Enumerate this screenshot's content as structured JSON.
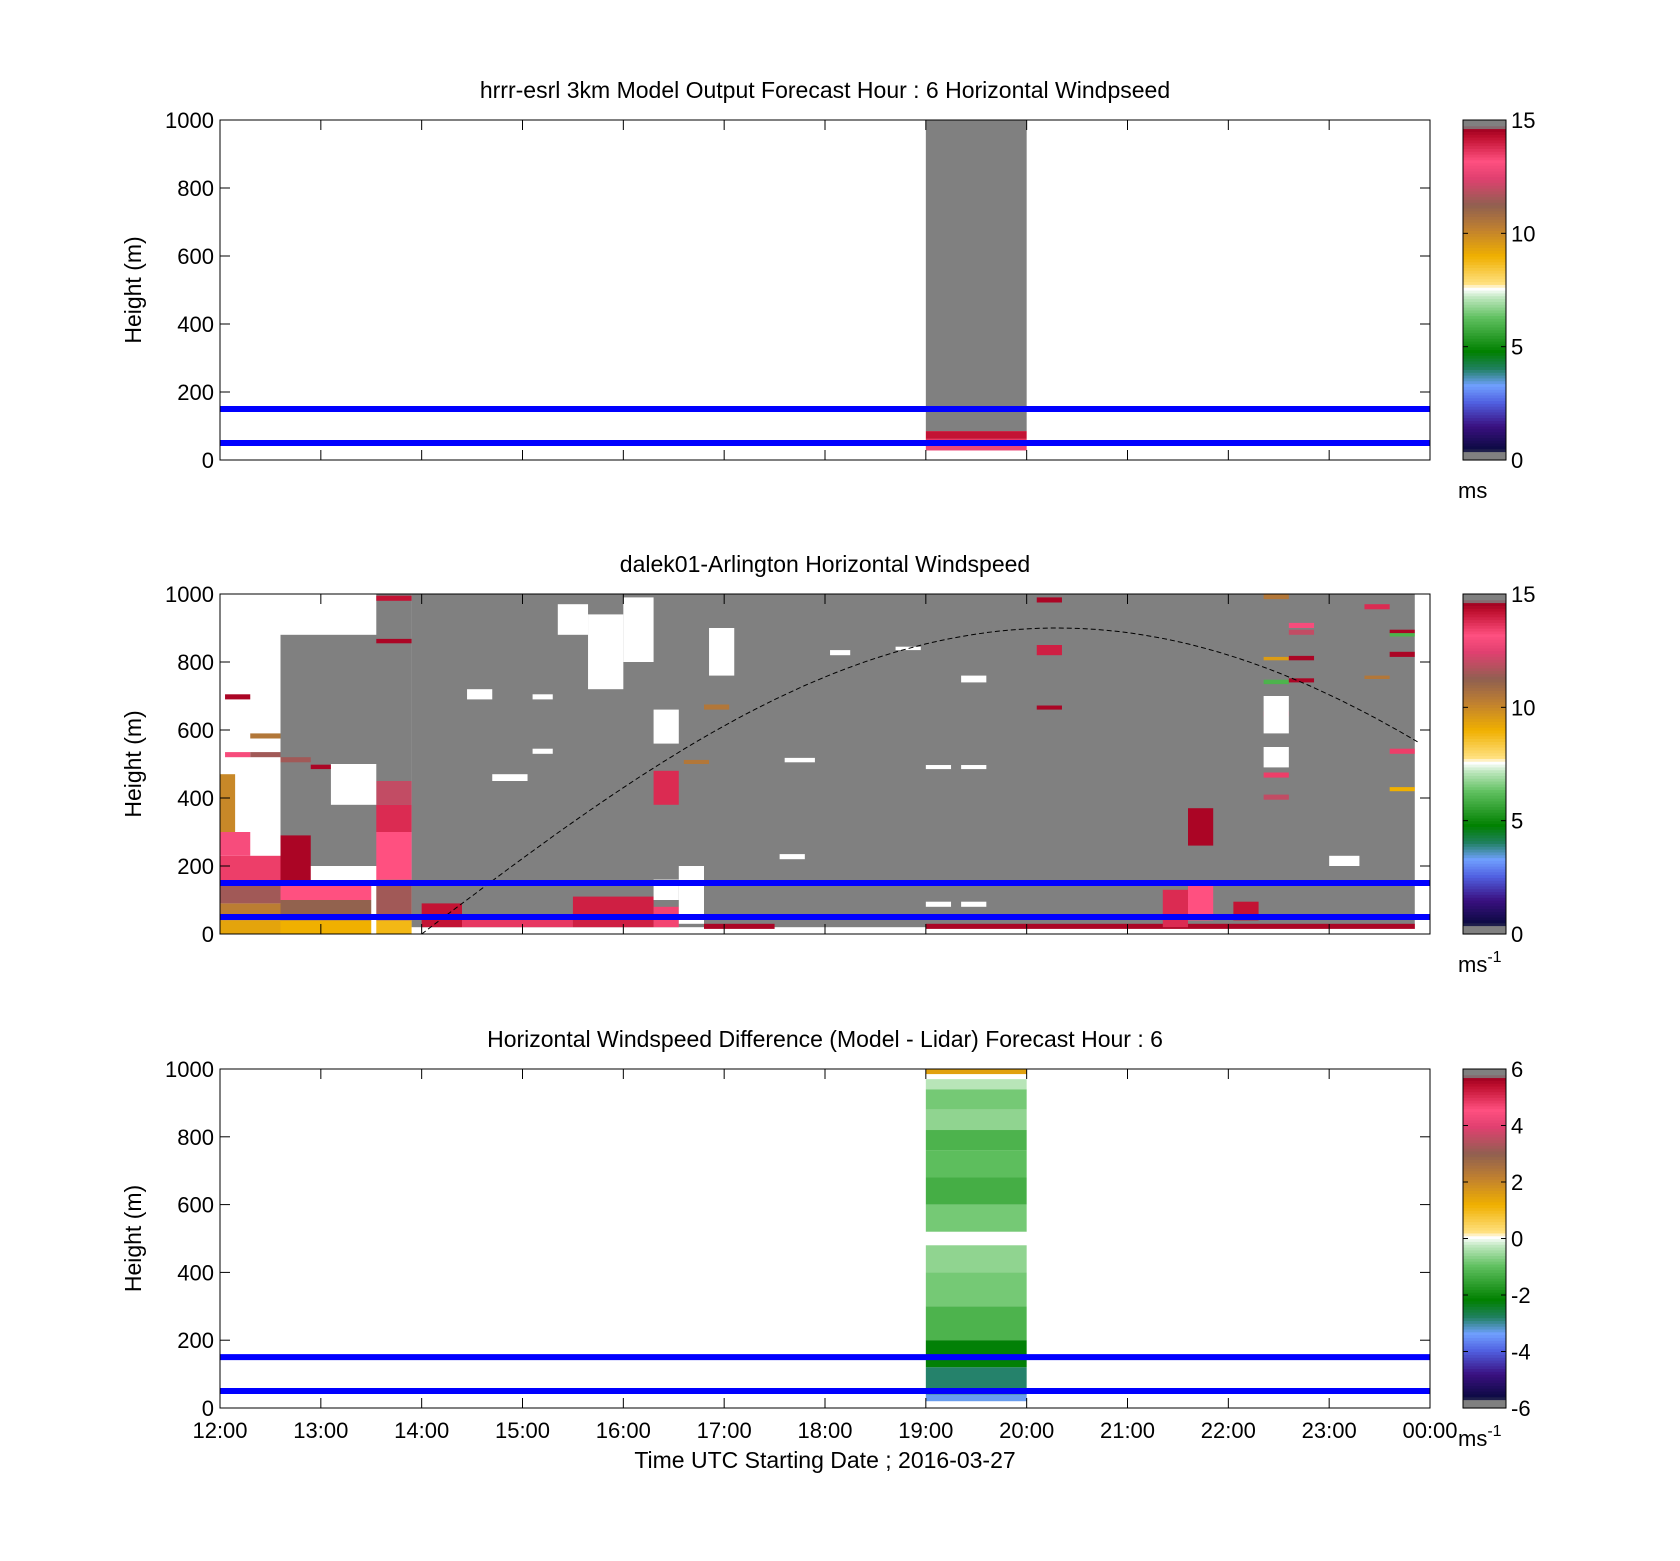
{
  "figure": {
    "x_tick_labels": [
      "12:00",
      "13:00",
      "14:00",
      "15:00",
      "16:00",
      "17:00",
      "18:00",
      "19:00",
      "20:00",
      "21:00",
      "22:00",
      "23:00",
      "00:00"
    ],
    "xlabel": "Time UTC  Starting Date ; 2016-03-27",
    "reference_lines_m": [
      50,
      150
    ],
    "reference_line_color": "#0000ff",
    "fill_value_color": "#808080"
  },
  "chart_data": [
    {
      "type": "heatmap",
      "panel": "top",
      "title": "hrrr-esrl 3km Model Output   Forecast Hour : 6 Horizontal Windpseed",
      "ylabel": "Height (m)",
      "xlim_hours_utc": [
        12,
        24
      ],
      "ylim": [
        0,
        1000
      ],
      "y_ticks": [
        "0",
        "200",
        "400",
        "600",
        "800",
        "1000"
      ],
      "colorbar": {
        "min": 0,
        "max": 15,
        "ticks": [
          "0",
          "5",
          "10",
          "15"
        ],
        "unit": "ms",
        "unit_sup": ""
      },
      "cells": [
        {
          "t0": 19,
          "t1": 20,
          "h0": 85,
          "h1": 1000,
          "v": null
        },
        {
          "t0": 19,
          "t1": 20,
          "h0": 62,
          "h1": 85,
          "v": 14.2
        },
        {
          "t0": 19,
          "t1": 20,
          "h0": 42,
          "h1": 62,
          "v": 13.6
        },
        {
          "t0": 19,
          "t1": 20,
          "h0": 28,
          "h1": 42,
          "v": 12.8
        }
      ]
    },
    {
      "type": "heatmap",
      "panel": "middle",
      "title": "dalek01-Arlington  Horizontal Windspeed",
      "ylabel": "Height (m)",
      "xlim_hours_utc": [
        12,
        24
      ],
      "ylim": [
        0,
        1000
      ],
      "y_ticks": [
        "0",
        "200",
        "400",
        "600",
        "800",
        "1000"
      ],
      "colorbar": {
        "min": 0,
        "max": 15,
        "ticks": [
          "0",
          "5",
          "10",
          "15"
        ],
        "unit": "ms",
        "unit_sup": "-1"
      },
      "cells": [
        {
          "t0": 12.6,
          "t1": 13.9,
          "h0": 200,
          "h1": 880,
          "v": null
        },
        {
          "t0": 13.9,
          "t1": 23.85,
          "h0": 20,
          "h1": 1000,
          "v": null
        },
        {
          "t0": 13.55,
          "t1": 13.9,
          "h0": 450,
          "h1": 1000,
          "v": null
        },
        {
          "t0": 12.0,
          "t1": 12.6,
          "h0": 0,
          "h1": 40,
          "v": 9.3
        },
        {
          "t0": 12.0,
          "t1": 12.6,
          "h0": 40,
          "h1": 90,
          "v": 10.3
        },
        {
          "t0": 12.0,
          "t1": 12.6,
          "h0": 90,
          "h1": 150,
          "v": 11.5
        },
        {
          "t0": 12.0,
          "t1": 12.6,
          "h0": 150,
          "h1": 230,
          "v": 13.5
        },
        {
          "t0": 12.0,
          "t1": 12.3,
          "h0": 230,
          "h1": 300,
          "v": 13.0
        },
        {
          "t0": 12.0,
          "t1": 12.15,
          "h0": 300,
          "h1": 470,
          "v": 10.0
        },
        {
          "t0": 12.6,
          "t1": 13.5,
          "h0": 0,
          "h1": 40,
          "v": 9.0
        },
        {
          "t0": 12.6,
          "t1": 13.5,
          "h0": 40,
          "h1": 100,
          "v": 11.2
        },
        {
          "t0": 12.6,
          "t1": 13.5,
          "h0": 100,
          "h1": 150,
          "v": 13.2
        },
        {
          "t0": 12.6,
          "t1": 12.9,
          "h0": 150,
          "h1": 290,
          "v": 14.5
        },
        {
          "t0": 13.55,
          "t1": 13.9,
          "h0": 0,
          "h1": 40,
          "v": 8.8
        },
        {
          "t0": 13.55,
          "t1": 13.9,
          "h0": 40,
          "h1": 160,
          "v": 11.5
        },
        {
          "t0": 13.55,
          "t1": 13.9,
          "h0": 160,
          "h1": 300,
          "v": 13.2
        },
        {
          "t0": 13.55,
          "t1": 13.9,
          "h0": 300,
          "h1": 380,
          "v": 13.8
        },
        {
          "t0": 13.55,
          "t1": 13.9,
          "h0": 380,
          "h1": 450,
          "v": 12.0
        },
        {
          "t0": 12.05,
          "t1": 12.3,
          "h0": 690,
          "h1": 705,
          "v": 14.5
        },
        {
          "t0": 12.05,
          "t1": 12.3,
          "h0": 520,
          "h1": 535,
          "v": 13.0
        },
        {
          "t0": 12.3,
          "t1": 12.6,
          "h0": 575,
          "h1": 590,
          "v": 10.5
        },
        {
          "t0": 12.3,
          "t1": 12.6,
          "h0": 520,
          "h1": 535,
          "v": 11.5
        },
        {
          "t0": 12.6,
          "t1": 12.9,
          "h0": 505,
          "h1": 520,
          "v": 11.5
        },
        {
          "t0": 12.9,
          "t1": 13.15,
          "h0": 485,
          "h1": 498,
          "v": 14.5
        },
        {
          "t0": 13.55,
          "t1": 13.9,
          "h0": 855,
          "h1": 868,
          "v": 14.5
        },
        {
          "t0": 13.55,
          "t1": 13.9,
          "h0": 980,
          "h1": 995,
          "v": 14.2
        },
        {
          "t0": 14.0,
          "t1": 14.4,
          "h0": 20,
          "h1": 90,
          "v": 14.2
        },
        {
          "t0": 14.4,
          "t1": 15.5,
          "h0": 20,
          "h1": 50,
          "v": 13.6
        },
        {
          "t0": 15.5,
          "t1": 16.3,
          "h0": 20,
          "h1": 110,
          "v": 14.0
        },
        {
          "t0": 16.3,
          "t1": 16.55,
          "h0": 20,
          "h1": 80,
          "v": 13.4
        },
        {
          "t0": 16.3,
          "t1": 16.55,
          "h0": 380,
          "h1": 480,
          "v": 13.8
        },
        {
          "t0": 16.8,
          "t1": 17.05,
          "h0": 660,
          "h1": 675,
          "v": 10.5
        },
        {
          "t0": 16.6,
          "t1": 16.85,
          "h0": 500,
          "h1": 512,
          "v": 10.5
        },
        {
          "t0": 16.8,
          "t1": 17.5,
          "h0": 15,
          "h1": 30,
          "v": 14.5
        },
        {
          "t0": 19.0,
          "t1": 24.0,
          "h0": 15,
          "h1": 30,
          "v": 14.5
        },
        {
          "t0": 20.1,
          "t1": 20.35,
          "h0": 660,
          "h1": 672,
          "v": 14.5
        },
        {
          "t0": 20.1,
          "t1": 20.35,
          "h0": 820,
          "h1": 850,
          "v": 14.0
        },
        {
          "t0": 20.1,
          "t1": 20.35,
          "h0": 975,
          "h1": 990,
          "v": 14.5
        },
        {
          "t0": 21.35,
          "t1": 21.6,
          "h0": 20,
          "h1": 130,
          "v": 13.8
        },
        {
          "t0": 21.6,
          "t1": 21.85,
          "h0": 40,
          "h1": 150,
          "v": 13.2
        },
        {
          "t0": 21.6,
          "t1": 21.85,
          "h0": 260,
          "h1": 370,
          "v": 14.5
        },
        {
          "t0": 22.05,
          "t1": 22.3,
          "h0": 40,
          "h1": 95,
          "v": 14.2
        },
        {
          "t0": 22.35,
          "t1": 22.6,
          "h0": 395,
          "h1": 410,
          "v": 12.0
        },
        {
          "t0": 22.35,
          "t1": 22.6,
          "h0": 460,
          "h1": 475,
          "v": 13.5
        },
        {
          "t0": 22.35,
          "t1": 22.6,
          "h0": 640,
          "h1": 655,
          "v": 13.5
        },
        {
          "t0": 22.35,
          "t1": 22.6,
          "h0": 805,
          "h1": 815,
          "v": 9.5
        },
        {
          "t0": 22.35,
          "t1": 22.6,
          "h0": 985,
          "h1": 1000,
          "v": 10.5
        },
        {
          "t0": 22.35,
          "t1": 22.6,
          "h0": 735,
          "h1": 748,
          "v": 6.0
        },
        {
          "t0": 22.6,
          "t1": 22.85,
          "h0": 740,
          "h1": 752,
          "v": 14.5
        },
        {
          "t0": 22.6,
          "t1": 22.85,
          "h0": 805,
          "h1": 818,
          "v": 14.5
        },
        {
          "t0": 22.6,
          "t1": 22.85,
          "h0": 880,
          "h1": 895,
          "v": 12.0
        },
        {
          "t0": 22.6,
          "t1": 22.85,
          "h0": 900,
          "h1": 915,
          "v": 13.0
        },
        {
          "t0": 23.35,
          "t1": 23.6,
          "h0": 750,
          "h1": 760,
          "v": 10.5
        },
        {
          "t0": 23.35,
          "t1": 23.6,
          "h0": 840,
          "h1": 855,
          "v": 14.8
        },
        {
          "t0": 23.35,
          "t1": 23.6,
          "h0": 955,
          "h1": 970,
          "v": 13.8
        },
        {
          "t0": 23.6,
          "t1": 23.85,
          "h0": 815,
          "h1": 830,
          "v": 14.5
        },
        {
          "t0": 23.6,
          "t1": 23.85,
          "h0": 875,
          "h1": 888,
          "v": 6.0
        },
        {
          "t0": 23.6,
          "t1": 23.85,
          "h0": 885,
          "h1": 895,
          "v": 14.5
        },
        {
          "t0": 23.6,
          "t1": 23.85,
          "h0": 420,
          "h1": 432,
          "v": 9.0
        },
        {
          "t0": 23.6,
          "t1": 23.85,
          "h0": 530,
          "h1": 545,
          "v": 13.5
        }
      ],
      "white_gaps": [
        {
          "t0": 13.1,
          "t1": 13.55,
          "h0": 380,
          "h1": 500
        },
        {
          "t0": 14.45,
          "t1": 14.7,
          "h0": 690,
          "h1": 720
        },
        {
          "t0": 14.7,
          "t1": 15.05,
          "h0": 450,
          "h1": 470
        },
        {
          "t0": 15.1,
          "t1": 15.3,
          "h0": 690,
          "h1": 705
        },
        {
          "t0": 15.1,
          "t1": 15.3,
          "h0": 530,
          "h1": 545
        },
        {
          "t0": 15.35,
          "t1": 15.65,
          "h0": 880,
          "h1": 970
        },
        {
          "t0": 15.65,
          "t1": 16.0,
          "h0": 720,
          "h1": 940
        },
        {
          "t0": 16.0,
          "t1": 16.3,
          "h0": 800,
          "h1": 990
        },
        {
          "t0": 16.3,
          "t1": 16.55,
          "h0": 560,
          "h1": 660
        },
        {
          "t0": 16.55,
          "t1": 16.8,
          "h0": 30,
          "h1": 200
        },
        {
          "t0": 16.3,
          "t1": 16.55,
          "h0": 100,
          "h1": 160
        },
        {
          "t0": 16.85,
          "t1": 17.1,
          "h0": 760,
          "h1": 900
        },
        {
          "t0": 17.55,
          "t1": 17.8,
          "h0": 220,
          "h1": 235
        },
        {
          "t0": 18.7,
          "t1": 18.95,
          "h0": 835,
          "h1": 845
        },
        {
          "t0": 19.35,
          "t1": 19.6,
          "h0": 740,
          "h1": 760
        },
        {
          "t0": 19.35,
          "t1": 19.6,
          "h0": 485,
          "h1": 497
        },
        {
          "t0": 19.0,
          "t1": 19.25,
          "h0": 485,
          "h1": 497
        },
        {
          "t0": 18.05,
          "t1": 18.25,
          "h0": 820,
          "h1": 835
        },
        {
          "t0": 17.6,
          "t1": 17.9,
          "h0": 505,
          "h1": 518
        },
        {
          "t0": 19.0,
          "t1": 19.25,
          "h0": 80,
          "h1": 95
        },
        {
          "t0": 19.35,
          "t1": 19.6,
          "h0": 80,
          "h1": 95
        },
        {
          "t0": 22.35,
          "t1": 22.6,
          "h0": 490,
          "h1": 550
        },
        {
          "t0": 22.35,
          "t1": 22.6,
          "h0": 590,
          "h1": 700
        },
        {
          "t0": 23.0,
          "t1": 23.3,
          "h0": 200,
          "h1": 230
        },
        {
          "t0": 23.85,
          "t1": 24.0,
          "h0": 0,
          "h1": 1000
        }
      ]
    },
    {
      "type": "heatmap",
      "panel": "bottom",
      "title": "Horizontal Windspeed Difference (Model - Lidar) Forecast Hour : 6",
      "ylabel": "Height (m)",
      "xlabel": "Time UTC  Starting Date ; 2016-03-27",
      "xlim_hours_utc": [
        12,
        24
      ],
      "ylim": [
        0,
        1000
      ],
      "y_ticks": [
        "0",
        "200",
        "400",
        "600",
        "800",
        "1000"
      ],
      "colorbar": {
        "min": -6,
        "max": 6,
        "ticks": [
          "-6",
          "-4",
          "-2",
          "0",
          "2",
          "4",
          "6"
        ],
        "unit": "ms",
        "unit_sup": "-1"
      },
      "cells": [
        {
          "t0": 19,
          "t1": 20,
          "h0": 985,
          "h1": 1000,
          "v": 1.5
        },
        {
          "t0": 19,
          "t1": 20,
          "h0": 940,
          "h1": 970,
          "v": -0.3
        },
        {
          "t0": 19,
          "t1": 20,
          "h0": 880,
          "h1": 940,
          "v": -0.8
        },
        {
          "t0": 19,
          "t1": 20,
          "h0": 820,
          "h1": 880,
          "v": -0.6
        },
        {
          "t0": 19,
          "t1": 20,
          "h0": 760,
          "h1": 820,
          "v": -1.2
        },
        {
          "t0": 19,
          "t1": 20,
          "h0": 680,
          "h1": 760,
          "v": -1.0
        },
        {
          "t0": 19,
          "t1": 20,
          "h0": 600,
          "h1": 680,
          "v": -1.3
        },
        {
          "t0": 19,
          "t1": 20,
          "h0": 520,
          "h1": 600,
          "v": -0.8
        },
        {
          "t0": 19,
          "t1": 20,
          "h0": 400,
          "h1": 480,
          "v": -0.6
        },
        {
          "t0": 19,
          "t1": 20,
          "h0": 300,
          "h1": 400,
          "v": -0.8
        },
        {
          "t0": 19,
          "t1": 20,
          "h0": 200,
          "h1": 300,
          "v": -1.2
        },
        {
          "t0": 19,
          "t1": 20,
          "h0": 120,
          "h1": 200,
          "v": -2.2
        },
        {
          "t0": 19,
          "t1": 20,
          "h0": 40,
          "h1": 120,
          "v": -2.8
        },
        {
          "t0": 19,
          "t1": 20,
          "h0": 20,
          "h1": 40,
          "v": -3.3
        }
      ]
    }
  ]
}
